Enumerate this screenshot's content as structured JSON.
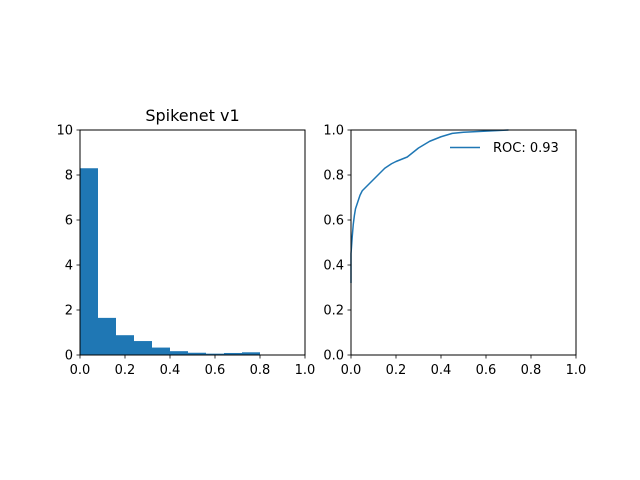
{
  "chart_data": [
    {
      "type": "bar",
      "title": "Spikenet v1",
      "xlabel": "",
      "ylabel": "",
      "xlim": [
        0.0,
        1.0
      ],
      "ylim": [
        0,
        10
      ],
      "x_ticks": [
        "0.0",
        "0.2",
        "0.4",
        "0.6",
        "0.8",
        "1.0"
      ],
      "y_ticks": [
        "0",
        "2",
        "4",
        "6",
        "8",
        "10"
      ],
      "bin_edges": [
        0.0,
        0.08,
        0.16,
        0.24,
        0.32,
        0.4,
        0.48,
        0.56,
        0.64,
        0.72,
        0.8
      ],
      "values": [
        8.3,
        1.65,
        0.88,
        0.62,
        0.33,
        0.17,
        0.1,
        0.06,
        0.09,
        0.12
      ],
      "color": "#1f77b4",
      "grid": false
    },
    {
      "type": "line",
      "title": "",
      "xlabel": "",
      "ylabel": "",
      "xlim": [
        0.0,
        1.0
      ],
      "ylim": [
        0.0,
        1.0
      ],
      "x_ticks": [
        "0.0",
        "0.2",
        "0.4",
        "0.6",
        "0.8",
        "1.0"
      ],
      "y_ticks": [
        "0.0",
        "0.2",
        "0.4",
        "0.6",
        "0.8",
        "1.0"
      ],
      "legend_position": "top-right",
      "grid": false,
      "series": [
        {
          "name": "ROC: 0.93",
          "color": "#1f77b4",
          "x": [
            0.0,
            0.0,
            0.005,
            0.01,
            0.015,
            0.02,
            0.03,
            0.04,
            0.05,
            0.06,
            0.08,
            0.1,
            0.12,
            0.15,
            0.18,
            0.2,
            0.25,
            0.3,
            0.35,
            0.4,
            0.45,
            0.5,
            0.6,
            0.7
          ],
          "y": [
            0.32,
            0.45,
            0.52,
            0.58,
            0.62,
            0.65,
            0.68,
            0.71,
            0.73,
            0.74,
            0.76,
            0.78,
            0.8,
            0.83,
            0.85,
            0.86,
            0.88,
            0.92,
            0.95,
            0.97,
            0.985,
            0.99,
            0.995,
            1.0
          ]
        }
      ]
    }
  ]
}
